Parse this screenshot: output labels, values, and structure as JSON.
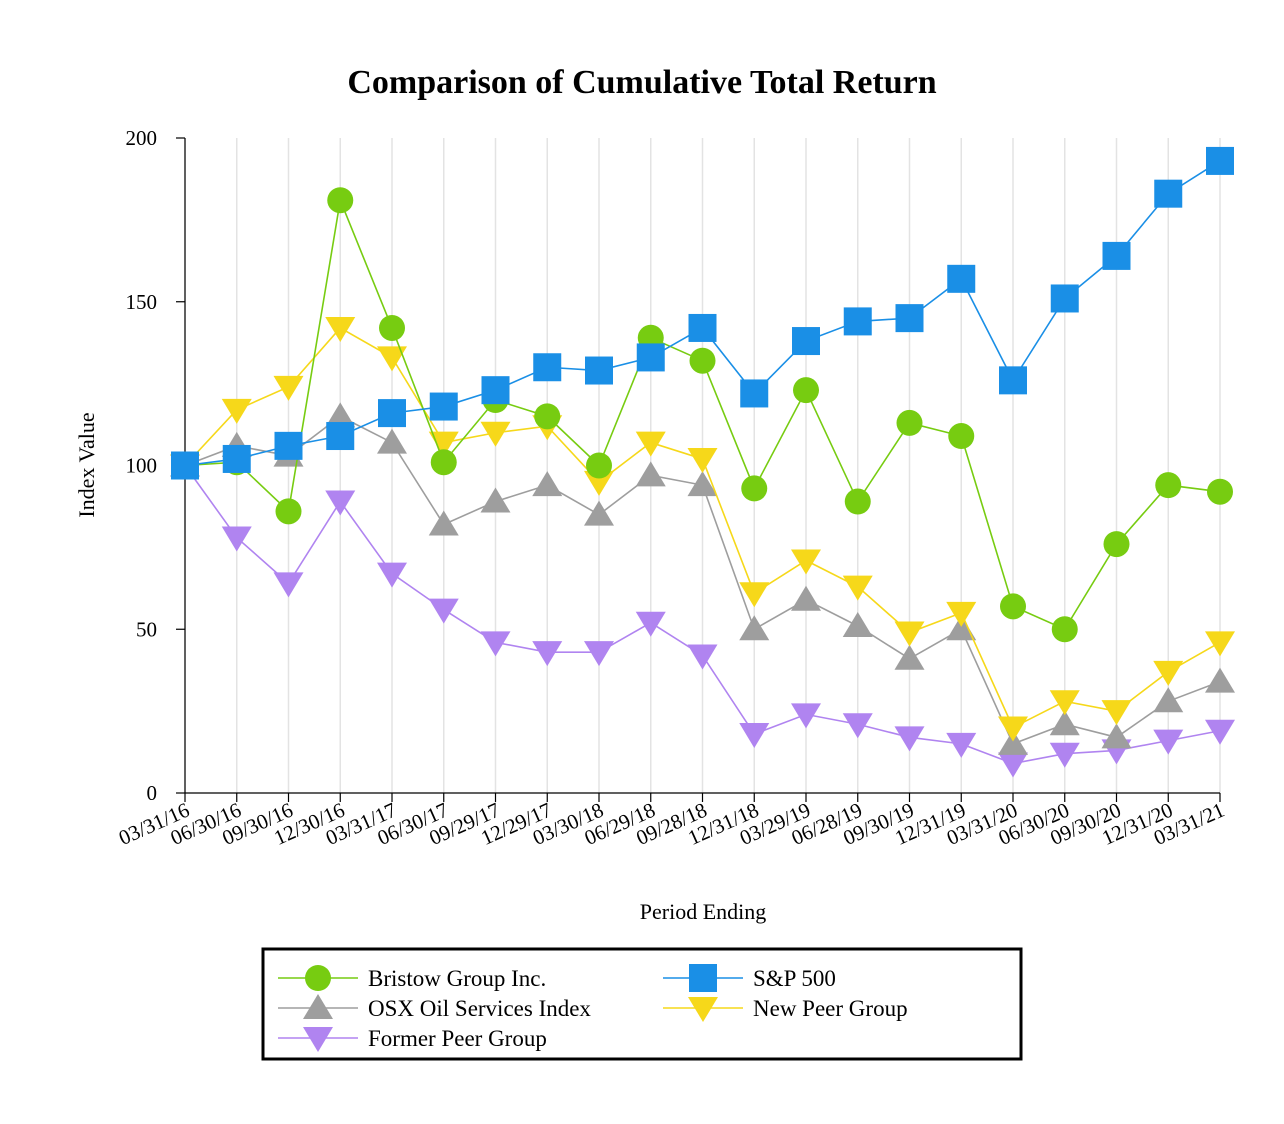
{
  "chart_data": {
    "type": "line",
    "title": "Comparison of Cumulative Total Return",
    "xlabel": "Period Ending",
    "ylabel": "Index Value",
    "ylim": [
      0,
      200
    ],
    "yticks": [
      0,
      50,
      100,
      150,
      200
    ],
    "grid": "vertical",
    "legend_position": "bottom",
    "categories": [
      "03/31/16",
      "06/30/16",
      "09/30/16",
      "12/30/16",
      "03/31/17",
      "06/30/17",
      "09/29/17",
      "12/29/17",
      "03/30/18",
      "06/29/18",
      "09/28/18",
      "12/31/18",
      "03/29/19",
      "06/28/19",
      "09/30/19",
      "12/31/19",
      "03/31/20",
      "06/30/20",
      "09/30/20",
      "12/31/20",
      "03/31/21"
    ],
    "series": [
      {
        "name": "Bristow Group Inc.",
        "color": "#77cc11",
        "marker": "circle",
        "values": [
          100,
          101,
          86,
          181,
          142,
          101,
          120,
          115,
          100,
          139,
          132,
          93,
          123,
          89,
          113,
          109,
          57,
          50,
          76,
          94,
          92
        ]
      },
      {
        "name": "S&P 500",
        "color": "#1a8fe6",
        "marker": "square",
        "values": [
          100,
          102,
          106,
          109,
          116,
          118,
          123,
          130,
          129,
          133,
          142,
          122,
          138,
          144,
          145,
          157,
          126,
          151,
          164,
          183,
          193
        ]
      },
      {
        "name": "OSX Oil Services Index",
        "color": "#9e9e9e",
        "marker": "triangle-up",
        "values": [
          100,
          106,
          103,
          115,
          107,
          82,
          89,
          94,
          85,
          97,
          94,
          50,
          59,
          51,
          41,
          50,
          15,
          21,
          17,
          28,
          34
        ]
      },
      {
        "name": "New Peer Group",
        "color": "#f6d81a",
        "marker": "triangle-down",
        "values": [
          100,
          117,
          124,
          142,
          133,
          107,
          110,
          112,
          95,
          107,
          102,
          61,
          71,
          63,
          49,
          55,
          20,
          28,
          25,
          37,
          46
        ]
      },
      {
        "name": "Former Peer Group",
        "color": "#b084f0",
        "marker": "triangle-down",
        "values": [
          100,
          78,
          64,
          89,
          67,
          56,
          46,
          43,
          43,
          52,
          42,
          18,
          24,
          21,
          17,
          15,
          9,
          12,
          13,
          16,
          19
        ]
      }
    ]
  }
}
